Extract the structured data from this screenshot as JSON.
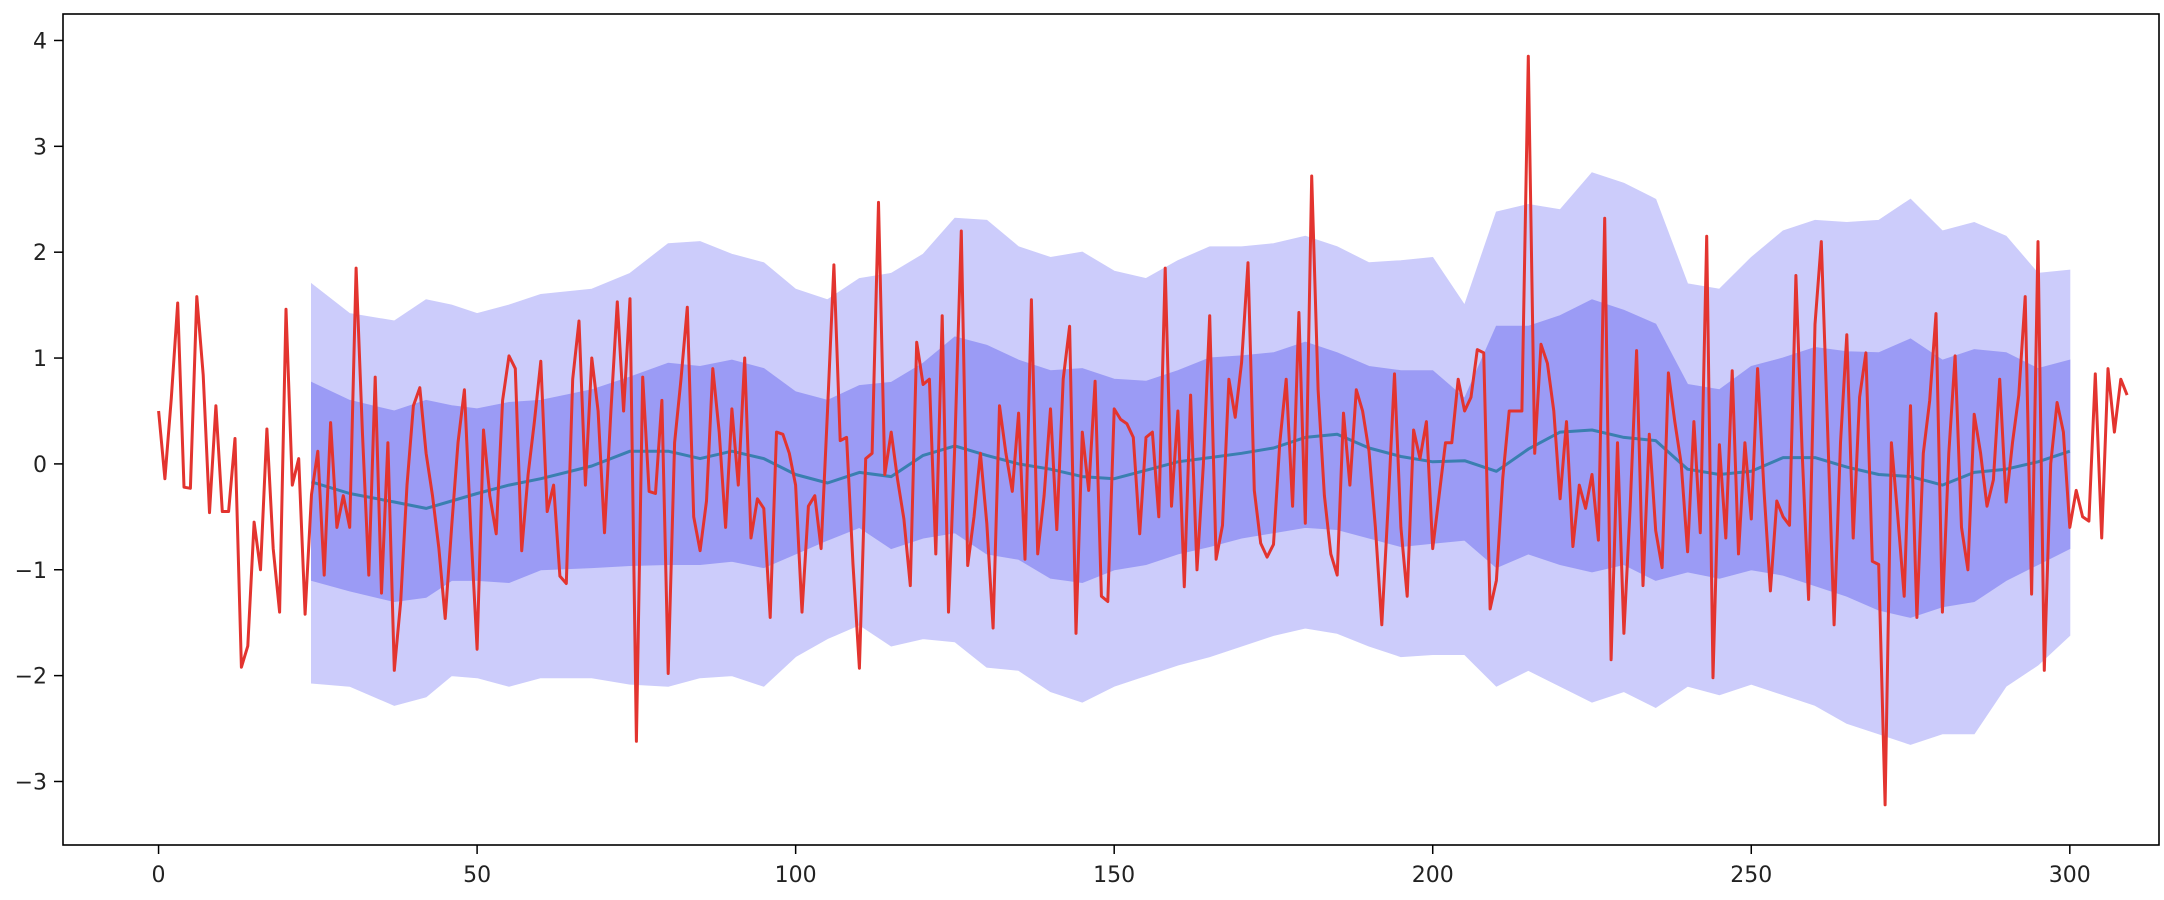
{
  "chart_data": {
    "type": "line",
    "title": "",
    "xlabel": "",
    "ylabel": "",
    "xlim": [
      -15,
      314
    ],
    "ylim": [
      -3.6,
      4.25
    ],
    "grid": false,
    "legend": "none",
    "x_ticks": [
      0,
      50,
      100,
      150,
      200,
      250,
      300
    ],
    "y_ticks": [
      -3,
      -2,
      -1,
      0,
      1,
      2,
      3,
      4
    ],
    "tick_labels": {
      "x": [
        "0",
        "50",
        "100",
        "150",
        "200",
        "250",
        "300"
      ],
      "y": [
        "−3",
        "−2",
        "−1",
        "0",
        "1",
        "2",
        "3",
        "4"
      ]
    },
    "colors": {
      "observed": "#e3342f",
      "forecast_mean": "#3a7fb0",
      "band_inner": "#9b9bf5",
      "band_outer": "#ccccfb"
    },
    "series": [
      {
        "role": "observed",
        "x_start": 0,
        "values": [
          0.5,
          -0.14,
          0.62,
          1.52,
          -0.22,
          -0.23,
          1.58,
          0.84,
          -0.46,
          0.55,
          -0.45,
          -0.45,
          0.24,
          -1.92,
          -1.72,
          -0.55,
          -1.0,
          0.33,
          -0.8,
          -1.4,
          1.46,
          -0.2,
          0.05,
          -1.42,
          -0.29,
          0.12,
          -1.05,
          0.39,
          -0.6,
          -0.3,
          -0.6,
          1.85,
          0.3,
          -1.05,
          0.82,
          -1.22,
          0.2,
          -1.95,
          -1.3,
          -0.2,
          0.55,
          0.72,
          0.1,
          -0.3,
          -0.8,
          -1.46,
          -0.6,
          0.2,
          0.7,
          -0.6,
          -1.75,
          0.32,
          -0.3,
          -0.66,
          0.6,
          1.02,
          0.9,
          -0.82,
          -0.1,
          0.4,
          0.97,
          -0.45,
          -0.2,
          -1.06,
          -1.13,
          0.8,
          1.35,
          -0.2,
          1.0,
          0.5,
          -0.65,
          0.5,
          1.53,
          0.5,
          1.56,
          -2.62,
          0.82,
          -0.26,
          -0.28,
          0.6,
          -1.98,
          0.2,
          0.8,
          1.48,
          -0.5,
          -0.82,
          -0.35,
          0.9,
          0.3,
          -0.6,
          0.52,
          -0.2,
          1.0,
          -0.7,
          -0.33,
          -0.42,
          -1.45,
          0.3,
          0.28,
          0.1,
          -0.2,
          -1.4,
          -0.4,
          -0.3,
          -0.8,
          0.5,
          1.88,
          0.22,
          0.25,
          -0.95,
          -1.93,
          0.05,
          0.1,
          2.47,
          -0.1,
          0.3,
          -0.15,
          -0.52,
          -1.15,
          1.15,
          0.75,
          0.8,
          -0.85,
          1.4,
          -1.4,
          0.2,
          2.2,
          -0.96,
          -0.5,
          0.1,
          -0.56,
          -1.55,
          0.55,
          0.1,
          -0.26,
          0.48,
          -0.9,
          1.55,
          -0.85,
          -0.3,
          0.52,
          -0.62,
          0.8,
          1.3,
          -1.6,
          0.3,
          -0.25,
          0.78,
          -1.25,
          -1.3,
          0.52,
          0.42,
          0.38,
          0.25,
          -0.66,
          0.25,
          0.3,
          -0.5,
          1.85,
          -0.4,
          0.5,
          -1.16,
          0.65,
          -1.0,
          0.0,
          1.4,
          -0.9,
          -0.58,
          0.8,
          0.44,
          0.96,
          1.9,
          -0.25,
          -0.75,
          -0.88,
          -0.76,
          0.2,
          0.8,
          -0.4,
          1.43,
          -0.56,
          2.72,
          0.7,
          -0.3,
          -0.85,
          -1.05,
          0.48,
          -0.2,
          0.7,
          0.5,
          0.12,
          -0.6,
          -1.52,
          -0.4,
          0.85,
          -0.6,
          -1.25,
          0.32,
          0.05,
          0.4,
          -0.8,
          -0.3,
          0.2,
          0.2,
          0.8,
          0.5,
          0.63,
          1.08,
          1.05,
          -1.37,
          -1.1,
          -0.13,
          0.5,
          0.5,
          0.5,
          3.85,
          0.1,
          1.13,
          0.95,
          0.5,
          -0.33,
          0.4,
          -0.78,
          -0.2,
          -0.42,
          -0.1,
          -0.72,
          2.32,
          -1.85,
          0.2,
          -1.6,
          -0.4,
          1.07,
          -1.15,
          0.28,
          -0.63,
          -0.98,
          0.86,
          0.4,
          0.0,
          -0.83,
          0.4,
          -0.65,
          2.15,
          -2.02,
          0.18,
          -0.7,
          0.88,
          -0.85,
          0.2,
          -0.52,
          0.9,
          -0.25,
          -1.2,
          -0.35,
          -0.5,
          -0.58,
          1.78,
          0.1,
          -1.28,
          1.32,
          2.1,
          0.3,
          -1.52,
          0.2,
          1.22,
          -0.7,
          0.63,
          1.05,
          -0.92,
          -0.95,
          -3.22,
          0.2,
          -0.5,
          -1.25,
          0.55,
          -1.45,
          0.1,
          0.6,
          1.42,
          -1.4,
          0.1,
          1.02,
          -0.6,
          -1.0,
          0.47,
          0.1,
          -0.4,
          -0.15,
          0.8,
          -0.36,
          0.2,
          0.65,
          1.58,
          -1.23,
          2.1,
          -1.95,
          0.0,
          0.58,
          0.3,
          -0.6,
          -0.25,
          -0.5,
          -0.54,
          0.85,
          -0.7,
          0.9,
          0.3,
          0.8,
          0.65
        ]
      },
      {
        "role": "forecast_mean",
        "x": [
          24,
          30,
          37,
          42,
          46,
          50,
          55,
          60,
          68,
          74,
          80,
          85,
          90,
          95,
          100,
          105,
          110,
          115,
          120,
          125,
          130,
          135,
          140,
          145,
          150,
          155,
          160,
          165,
          170,
          175,
          180,
          185,
          190,
          195,
          200,
          205,
          210,
          215,
          220,
          225,
          230,
          235,
          240,
          245,
          250,
          255,
          260,
          265,
          270,
          275,
          280,
          285,
          290,
          295,
          300
        ],
        "values": [
          -0.17,
          -0.28,
          -0.36,
          -0.42,
          -0.35,
          -0.28,
          -0.2,
          -0.14,
          -0.02,
          0.12,
          0.12,
          0.05,
          0.12,
          0.05,
          -0.1,
          -0.18,
          -0.08,
          -0.12,
          0.08,
          0.17,
          0.08,
          0.0,
          -0.05,
          -0.12,
          -0.14,
          -0.06,
          0.02,
          0.06,
          0.1,
          0.15,
          0.25,
          0.28,
          0.15,
          0.07,
          0.02,
          0.03,
          -0.07,
          0.14,
          0.3,
          0.32,
          0.25,
          0.22,
          -0.05,
          -0.1,
          -0.07,
          0.06,
          0.06,
          -0.03,
          -0.1,
          -0.12,
          -0.2,
          -0.08,
          -0.05,
          0.02,
          0.12
        ]
      }
    ],
    "bands": [
      {
        "role": "outer_band",
        "x": [
          24,
          30,
          37,
          42,
          46,
          50,
          55,
          60,
          68,
          74,
          80,
          85,
          90,
          95,
          100,
          105,
          110,
          115,
          120,
          125,
          130,
          135,
          140,
          145,
          150,
          155,
          160,
          165,
          170,
          175,
          180,
          185,
          190,
          195,
          200,
          205,
          210,
          215,
          220,
          225,
          230,
          235,
          240,
          245,
          250,
          255,
          260,
          265,
          270,
          275,
          280,
          285,
          290,
          295,
          300
        ],
        "upper": [
          1.7,
          1.42,
          1.35,
          1.55,
          1.5,
          1.42,
          1.5,
          1.6,
          1.65,
          1.8,
          2.08,
          2.1,
          1.98,
          1.9,
          1.65,
          1.55,
          1.75,
          1.8,
          1.98,
          2.32,
          2.3,
          2.05,
          1.95,
          2.0,
          1.82,
          1.75,
          1.92,
          2.05,
          2.05,
          2.08,
          2.15,
          2.05,
          1.9,
          1.92,
          1.95,
          1.5,
          2.38,
          2.45,
          2.4,
          2.75,
          2.65,
          2.5,
          1.7,
          1.65,
          1.95,
          2.2,
          2.3,
          2.28,
          2.3,
          2.5,
          2.2,
          2.28,
          2.15,
          1.8,
          1.83
        ],
        "lower": [
          -2.07,
          -2.1,
          -2.28,
          -2.2,
          -2.0,
          -2.02,
          -2.1,
          -2.02,
          -2.02,
          -2.08,
          -2.1,
          -2.02,
          -2.0,
          -2.1,
          -1.82,
          -1.65,
          -1.52,
          -1.72,
          -1.65,
          -1.68,
          -1.92,
          -1.95,
          -2.15,
          -2.25,
          -2.1,
          -2.0,
          -1.9,
          -1.82,
          -1.72,
          -1.62,
          -1.55,
          -1.6,
          -1.72,
          -1.82,
          -1.8,
          -1.8,
          -2.1,
          -1.95,
          -2.1,
          -2.25,
          -2.15,
          -2.3,
          -2.1,
          -2.18,
          -2.08,
          -2.18,
          -2.28,
          -2.45,
          -2.55,
          -2.65,
          -2.55,
          -2.55,
          -2.1,
          -1.9,
          -1.62
        ]
      },
      {
        "role": "inner_band",
        "x": [
          24,
          30,
          37,
          42,
          46,
          50,
          55,
          60,
          68,
          74,
          80,
          85,
          90,
          95,
          100,
          105,
          110,
          115,
          120,
          125,
          130,
          135,
          140,
          145,
          150,
          155,
          160,
          165,
          170,
          175,
          180,
          185,
          190,
          195,
          200,
          205,
          210,
          215,
          220,
          225,
          230,
          235,
          240,
          245,
          250,
          255,
          260,
          265,
          270,
          275,
          280,
          285,
          290,
          295,
          300
        ],
        "upper": [
          0.77,
          0.6,
          0.5,
          0.6,
          0.55,
          0.52,
          0.58,
          0.6,
          0.7,
          0.82,
          0.95,
          0.92,
          0.98,
          0.9,
          0.68,
          0.6,
          0.74,
          0.77,
          0.95,
          1.2,
          1.12,
          0.98,
          0.88,
          0.9,
          0.8,
          0.78,
          0.88,
          1.0,
          1.02,
          1.05,
          1.15,
          1.05,
          0.92,
          0.88,
          0.88,
          0.62,
          1.3,
          1.3,
          1.4,
          1.55,
          1.45,
          1.32,
          0.75,
          0.7,
          0.92,
          1.0,
          1.1,
          1.06,
          1.05,
          1.18,
          0.98,
          1.08,
          1.05,
          0.9,
          0.98
        ],
        "lower": [
          -1.1,
          -1.2,
          -1.3,
          -1.26,
          -1.1,
          -1.1,
          -1.12,
          -1.0,
          -0.98,
          -0.96,
          -0.95,
          -0.95,
          -0.92,
          -0.98,
          -0.85,
          -0.72,
          -0.6,
          -0.8,
          -0.7,
          -0.65,
          -0.85,
          -0.9,
          -1.08,
          -1.12,
          -1.0,
          -0.95,
          -0.85,
          -0.78,
          -0.7,
          -0.65,
          -0.6,
          -0.62,
          -0.7,
          -0.78,
          -0.75,
          -0.72,
          -0.98,
          -0.85,
          -0.95,
          -1.02,
          -0.95,
          -1.1,
          -1.02,
          -1.08,
          -1.0,
          -1.05,
          -1.15,
          -1.25,
          -1.38,
          -1.45,
          -1.35,
          -1.3,
          -1.1,
          -0.95,
          -0.8
        ]
      }
    ]
  }
}
